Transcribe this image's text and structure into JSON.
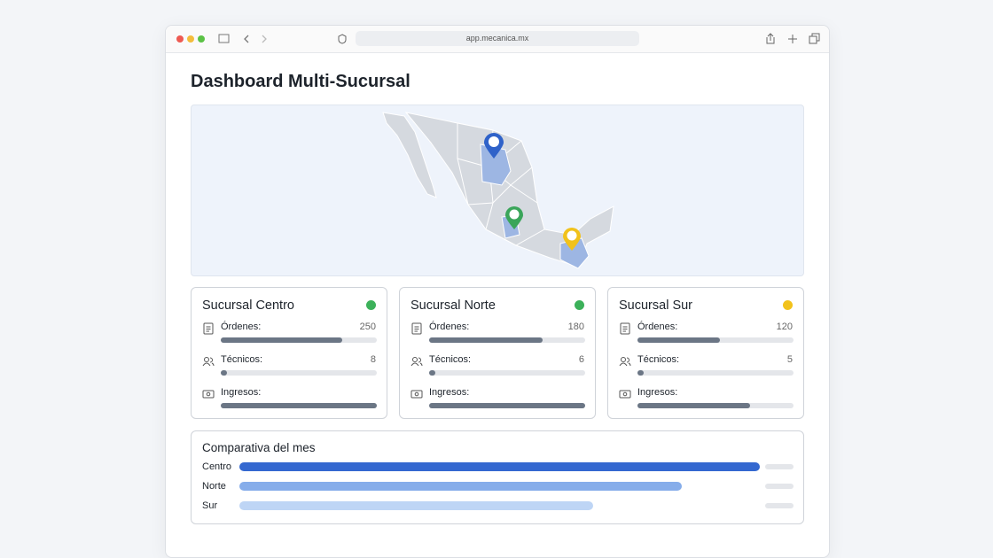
{
  "browser": {
    "url": "app.mecanica.mx"
  },
  "page": {
    "title": "Dashboard Multi-Sucursal"
  },
  "branches": [
    {
      "name": "Sucursal Centro",
      "status_color": "#3cb15a",
      "metrics": [
        {
          "label": "Órdenes:",
          "value": 250,
          "bar": 78
        },
        {
          "label": "Técnicos:",
          "value": 8,
          "bar": 4
        },
        {
          "label": "Ingresos:",
          "bar": 100
        }
      ]
    },
    {
      "name": "Sucursal Norte",
      "status_color": "#3cb15a",
      "metrics": [
        {
          "label": "Órdenes:",
          "value": 180,
          "bar": 73
        },
        {
          "label": "Técnicos:",
          "value": 6,
          "bar": 4
        },
        {
          "label": "Ingresos:",
          "bar": 100
        }
      ]
    },
    {
      "name": "Sucursal Sur",
      "status_color": "#f2c21b",
      "metrics": [
        {
          "label": "Órdenes:",
          "value": 120,
          "bar": 53
        },
        {
          "label": "Técnicos:",
          "value": 5,
          "bar": 4
        },
        {
          "label": "Ingresos:",
          "bar": 72
        }
      ]
    }
  ],
  "comparison": {
    "title": "Comparativa del mes",
    "rows": [
      {
        "label": "Centro",
        "value": 94,
        "color": "#3468d0"
      },
      {
        "label": "Norte",
        "value": 80,
        "color": "#86adea"
      },
      {
        "label": "Sur",
        "value": 64,
        "color": "#bed5f5"
      }
    ]
  }
}
